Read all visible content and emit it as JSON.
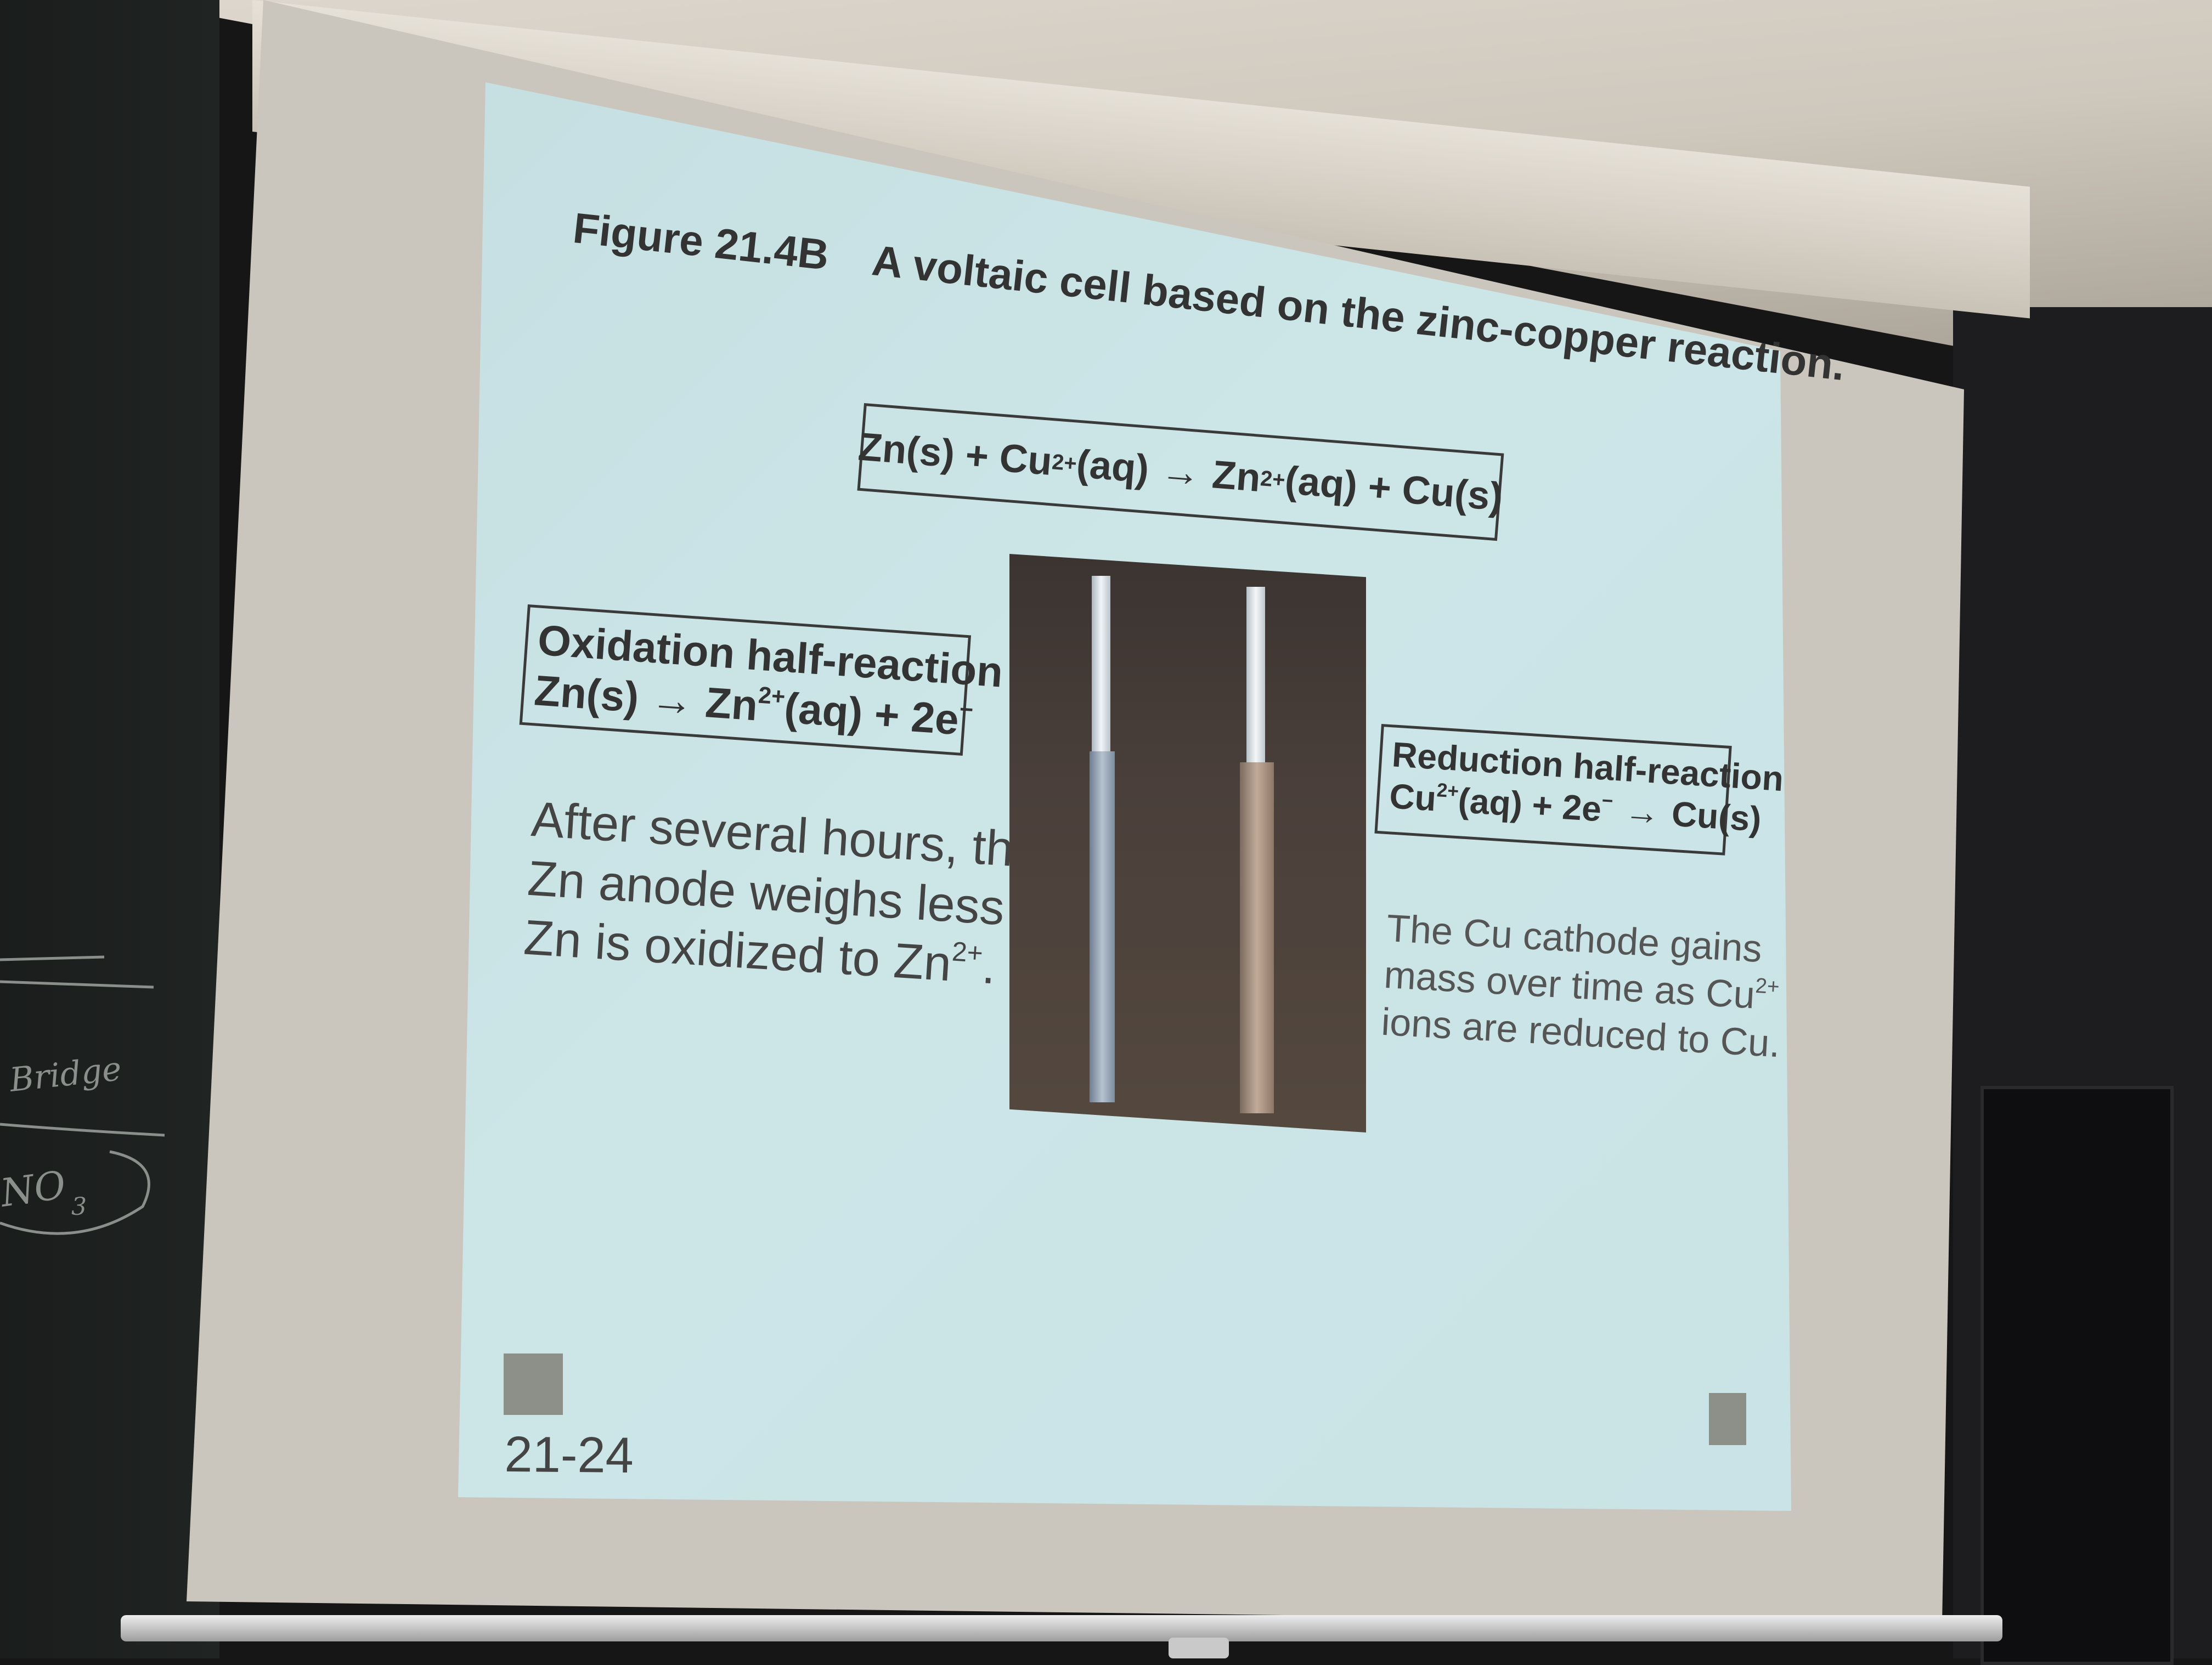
{
  "slide": {
    "figure_label": "Figure 21.4B",
    "figure_caption": "A voltaic cell based on the zinc-copper reaction.",
    "overall_equation": {
      "lhs_a": "Zn(s) + Cu",
      "lhs_sup": "2+",
      "lhs_b": "(aq)",
      "arrow": "→",
      "rhs_a": "Zn",
      "rhs_sup": "2+",
      "rhs_b": "(aq) + Cu(s)"
    },
    "oxidation": {
      "title": "Oxidation half-reaction",
      "eq_lhs": "Zn(s)",
      "arrow": "→",
      "eq_rhs_a": "Zn",
      "eq_rhs_sup": "2+",
      "eq_rhs_b": "(aq) + 2e",
      "eq_rhs_sup2": "−"
    },
    "reduction": {
      "title": "Reduction half-reaction",
      "eq_lhs_a": "Cu",
      "eq_lhs_sup": "2+",
      "eq_lhs_b": "(aq) + 2e",
      "eq_lhs_sup2": "−",
      "arrow": "→",
      "eq_rhs": "Cu(s)"
    },
    "anode_note": {
      "line1": "After several hours, the",
      "line2": "Zn anode weighs less as",
      "line3_a": "Zn is oxidized to Zn",
      "line3_sup": "2+",
      "line3_b": "."
    },
    "cathode_note": {
      "line1": "The Cu cathode gains",
      "line2_a": "mass over time as Cu",
      "line2_sup": "2+",
      "line3": "ions are reduced to Cu."
    },
    "slide_number": "21-24"
  },
  "background": {
    "chalk_text_1": "Bridge",
    "chalk_text_2": "NO",
    "chalk_text_2_sub": "3"
  },
  "colors": {
    "slide_background": "#c8e2e5",
    "text": "#333333",
    "corner_square": "#8c9088"
  }
}
